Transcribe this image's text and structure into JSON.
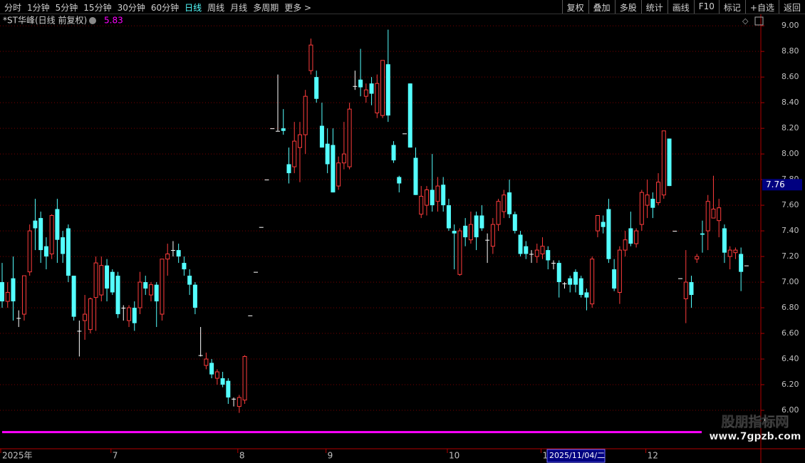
{
  "toolbar": {
    "left": [
      "分时",
      "1分钟",
      "5分钟",
      "15分钟",
      "30分钟",
      "60分钟",
      "日线",
      "周线",
      "月线",
      "多周期",
      "更多 >"
    ],
    "right": [
      "复权",
      "叠加",
      "多股",
      "统计",
      "画线",
      "F10",
      "标记",
      "+自选",
      "返回"
    ]
  },
  "chart_data": {
    "type": "candlestick",
    "title": "*ST华峰(日线 前复权)",
    "indicator": {
      "value": 5.83,
      "color": "#ff00ff"
    },
    "up_color": "#ff3c3c",
    "down_color": "#54ffff",
    "flat_color": "#ffffff",
    "grid": true,
    "ylim": [
      5.7,
      9.09
    ],
    "yticks": [
      {
        "value": 9.0,
        "label": "9.00"
      },
      {
        "value": 8.8,
        "label": "8.80"
      },
      {
        "value": 8.6,
        "label": "8.60"
      },
      {
        "value": 8.4,
        "label": "8.40"
      },
      {
        "value": 8.2,
        "label": "8.20"
      },
      {
        "value": 8.0,
        "label": "8.00"
      },
      {
        "value": 7.8,
        "label": "7.80"
      },
      {
        "value": 7.6,
        "label": "7.60"
      },
      {
        "value": 7.4,
        "label": "7.40"
      },
      {
        "value": 7.2,
        "label": "7.20"
      },
      {
        "value": 7.0,
        "label": "7.00"
      },
      {
        "value": 6.8,
        "label": "6.80"
      },
      {
        "value": 6.6,
        "label": "6.60"
      },
      {
        "value": 6.4,
        "label": "6.40"
      },
      {
        "value": 6.2,
        "label": "6.20"
      },
      {
        "value": 6.0,
        "label": "6.00"
      }
    ],
    "crosshair": {
      "price": 7.76,
      "date": "2025/11/04/二"
    },
    "categories": [
      "2025年",
      null,
      null,
      null,
      null,
      null,
      null,
      null,
      null,
      null,
      null,
      null,
      null,
      null,
      null,
      null,
      null,
      null,
      null,
      null,
      "7",
      null,
      null,
      null,
      null,
      null,
      null,
      null,
      null,
      null,
      null,
      null,
      null,
      null,
      null,
      null,
      null,
      null,
      null,
      null,
      null,
      null,
      null,
      "8",
      null,
      null,
      null,
      null,
      null,
      null,
      null,
      null,
      null,
      null,
      null,
      null,
      null,
      null,
      null,
      "9",
      null,
      null,
      null,
      null,
      null,
      null,
      null,
      null,
      null,
      null,
      null,
      null,
      null,
      null,
      null,
      null,
      null,
      null,
      null,
      null,
      null,
      "10",
      null,
      null,
      null,
      null,
      null,
      null,
      null,
      null,
      null,
      null,
      null,
      null,
      null,
      null,
      null,
      null,
      "1",
      null,
      null,
      null,
      null,
      null,
      null,
      null,
      null,
      null,
      null,
      null,
      null,
      null,
      null,
      null,
      null,
      null,
      null,
      "12",
      null,
      null,
      null,
      null,
      null,
      null,
      null,
      null,
      null,
      null,
      null,
      null,
      null,
      null,
      null,
      null,
      null,
      null
    ],
    "open": [
      7.0,
      6.85,
      7.03,
      6.72,
      6.75,
      7.08,
      7.48,
      7.5,
      7.28,
      7.22,
      7.57,
      7.35,
      7.42,
      7.05,
      6.62,
      6.7,
      6.63,
      6.88,
      6.9,
      7.13,
      7.08,
      7.05,
      6.8,
      6.7,
      6.8,
      6.8,
      7.0,
      6.9,
      6.98,
      6.75,
      7.18,
      7.25,
      7.25,
      7.15,
      7.05,
      6.98,
      6.43,
      6.35,
      6.37,
      6.25,
      6.25,
      6.23,
      6.09,
      6.03,
      6.08,
      6.74,
      7.08,
      7.43,
      7.8,
      8.2,
      8.18,
      8.2,
      7.92,
      7.9,
      8.05,
      8.15,
      8.65,
      8.6,
      8.22,
      8.08,
      8.07,
      7.75,
      7.93,
      7.9,
      8.53,
      8.58,
      8.45,
      8.55,
      8.32,
      8.3,
      8.7,
      8.07,
      7.82,
      8.16,
      8.55,
      7.97,
      7.53,
      7.6,
      7.72,
      7.63,
      7.76,
      7.6,
      7.4,
      7.06,
      7.44,
      7.33,
      7.52,
      7.52,
      7.33,
      7.28,
      7.45,
      7.55,
      7.7,
      7.53,
      7.37,
      7.28,
      7.22,
      7.2,
      7.22,
      7.25,
      7.15,
      7.15,
      6.99,
      7.03,
      7.08,
      7.03,
      6.92,
      6.83,
      7.4,
      7.47,
      7.57,
      7.1,
      6.92,
      7.25,
      7.42,
      7.3,
      7.45,
      7.6,
      7.65,
      7.62,
      7.68,
      8.12,
      7.4,
      7.03,
      6.87,
      7.0,
      7.18,
      7.38,
      7.4,
      7.5,
      7.48,
      7.42,
      7.2,
      7.23,
      7.22,
      7.13
    ],
    "high": [
      7.15,
      7.0,
      7.2,
      6.78,
      7.05,
      7.45,
      7.65,
      7.55,
      7.35,
      7.53,
      7.65,
      7.4,
      7.45,
      7.05,
      6.7,
      6.9,
      6.88,
      7.2,
      7.2,
      7.18,
      7.1,
      7.08,
      6.82,
      6.82,
      6.85,
      7.08,
      7.05,
      7.0,
      7.0,
      7.18,
      7.3,
      7.32,
      7.3,
      7.2,
      7.1,
      7.0,
      6.65,
      6.45,
      6.4,
      6.32,
      6.3,
      6.25,
      6.1,
      6.12,
      6.43,
      6.74,
      7.08,
      7.43,
      7.8,
      8.2,
      8.62,
      8.35,
      8.05,
      8.25,
      8.25,
      8.5,
      8.9,
      8.65,
      8.4,
      8.2,
      8.2,
      7.98,
      8.25,
      8.4,
      8.65,
      8.82,
      8.55,
      8.6,
      8.62,
      8.73,
      8.97,
      8.1,
      7.83,
      8.16,
      8.55,
      8.05,
      7.75,
      7.75,
      8.0,
      7.82,
      7.82,
      7.65,
      7.45,
      7.42,
      7.5,
      7.55,
      7.55,
      7.6,
      7.38,
      7.5,
      7.65,
      7.72,
      7.8,
      7.55,
      7.4,
      7.32,
      7.25,
      7.3,
      7.35,
      7.28,
      7.17,
      7.17,
      7.0,
      7.05,
      7.1,
      7.05,
      6.95,
      7.2,
      7.52,
      7.52,
      7.65,
      7.18,
      7.28,
      7.4,
      7.55,
      7.42,
      7.72,
      7.8,
      7.7,
      7.85,
      8.18,
      8.12,
      7.4,
      7.03,
      7.25,
      7.05,
      7.22,
      7.48,
      7.68,
      7.83,
      7.65,
      7.45,
      7.28,
      7.27,
      7.27,
      7.13
    ],
    "low": [
      6.8,
      6.8,
      6.7,
      6.65,
      6.7,
      7.05,
      7.25,
      7.15,
      7.1,
      7.18,
      7.15,
      7.15,
      7.0,
      6.7,
      6.42,
      6.55,
      6.6,
      6.62,
      6.85,
      6.85,
      6.9,
      6.72,
      6.7,
      6.65,
      6.62,
      6.75,
      6.9,
      6.85,
      6.65,
      6.7,
      7.05,
      7.2,
      7.15,
      7.05,
      6.9,
      6.75,
      6.42,
      6.32,
      6.25,
      6.2,
      6.18,
      6.05,
      6.03,
      5.98,
      6.05,
      6.74,
      7.08,
      7.43,
      7.8,
      8.2,
      8.18,
      8.15,
      7.77,
      7.85,
      7.78,
      8.0,
      8.62,
      8.4,
      8.05,
      7.85,
      7.7,
      7.72,
      7.88,
      7.88,
      8.5,
      8.45,
      8.4,
      8.38,
      8.28,
      8.28,
      8.25,
      7.93,
      7.7,
      8.16,
      8.05,
      7.68,
      7.5,
      7.52,
      7.55,
      7.55,
      7.55,
      7.4,
      7.1,
      7.05,
      7.28,
      7.3,
      7.25,
      7.4,
      7.15,
      7.22,
      7.4,
      7.5,
      7.5,
      7.38,
      7.2,
      7.18,
      7.15,
      7.15,
      7.18,
      7.1,
      7.1,
      6.88,
      6.95,
      6.92,
      6.92,
      6.88,
      6.78,
      6.8,
      7.35,
      7.38,
      7.15,
      6.93,
      6.83,
      7.2,
      7.28,
      7.27,
      7.4,
      7.5,
      7.5,
      7.6,
      7.65,
      7.75,
      7.4,
      7.03,
      6.68,
      6.8,
      7.15,
      7.23,
      7.25,
      7.5,
      7.35,
      7.15,
      7.1,
      7.18,
      6.93,
      7.13
    ],
    "close": [
      6.85,
      6.92,
      6.85,
      6.72,
      7.05,
      7.4,
      7.42,
      7.25,
      7.2,
      7.52,
      7.33,
      7.22,
      7.05,
      6.73,
      6.62,
      6.75,
      6.87,
      7.15,
      7.13,
      6.95,
      6.92,
      6.75,
      6.8,
      6.8,
      6.68,
      7.0,
      6.95,
      6.98,
      6.85,
      7.18,
      7.22,
      7.25,
      7.2,
      7.1,
      6.98,
      6.8,
      6.43,
      6.4,
      6.28,
      6.3,
      6.2,
      6.1,
      6.09,
      6.1,
      6.42,
      6.74,
      7.08,
      7.43,
      7.8,
      8.2,
      8.18,
      8.18,
      7.85,
      8.1,
      8.15,
      8.45,
      8.85,
      8.43,
      8.05,
      7.92,
      7.7,
      7.93,
      8.0,
      8.35,
      8.53,
      8.52,
      8.5,
      8.47,
      8.55,
      8.73,
      8.3,
      7.95,
      7.77,
      8.16,
      8.05,
      7.68,
      7.67,
      7.72,
      7.6,
      7.75,
      7.6,
      7.42,
      7.38,
      7.4,
      7.35,
      7.45,
      7.35,
      7.42,
      7.33,
      7.45,
      7.63,
      7.68,
      7.53,
      7.4,
      7.22,
      7.22,
      7.22,
      7.25,
      7.28,
      7.17,
      7.15,
      7.0,
      6.99,
      6.98,
      6.98,
      6.9,
      6.88,
      7.18,
      7.52,
      7.43,
      7.18,
      6.95,
      7.25,
      7.33,
      7.3,
      7.4,
      7.7,
      7.68,
      7.58,
      7.78,
      8.18,
      7.75,
      7.4,
      7.03,
      7.0,
      6.9,
      7.2,
      7.37,
      7.63,
      7.57,
      7.58,
      7.23,
      7.25,
      7.25,
      7.08,
      7.13
    ]
  },
  "watermark": {
    "name": "股朋指标网",
    "url": "www.7gpzb.com"
  }
}
